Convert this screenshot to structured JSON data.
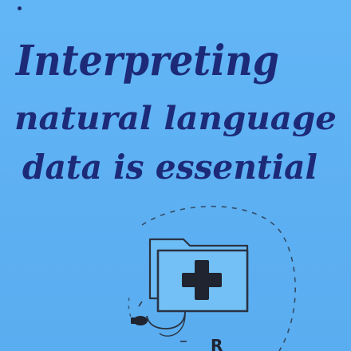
{
  "note": {
    "lines": [
      "Interpreting",
      "natural language",
      "data is essential"
    ],
    "ink_color": "#1c2a78",
    "paper_color": "#5fb2f3"
  },
  "illustration": {
    "icon": "medical-folder-icon",
    "partial_label": "R",
    "accent_color": "#1f2430",
    "folder_fill": "#6cbcf5",
    "folder_stroke": "#2a3342"
  }
}
